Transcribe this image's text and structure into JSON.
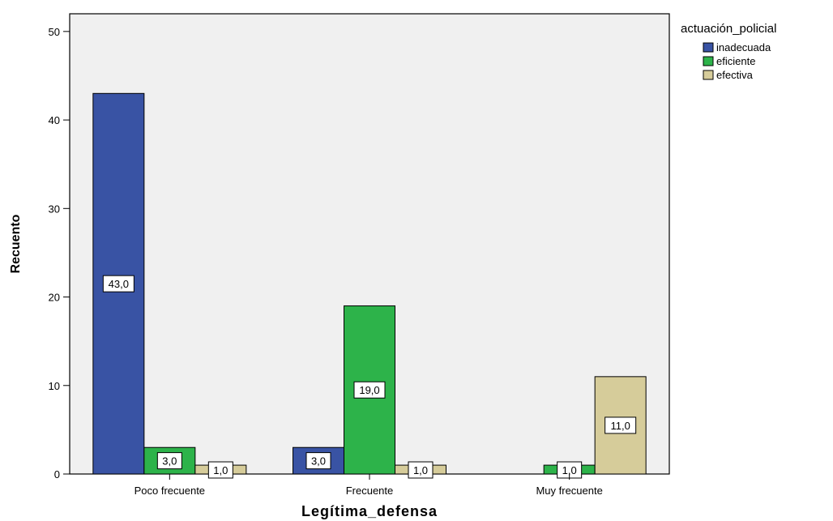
{
  "chart_data": {
    "type": "bar",
    "categories": [
      "Poco frecuente",
      "Frecuente",
      "Muy frecuente"
    ],
    "series": [
      {
        "name": "inadecuada",
        "color": "#3953a4",
        "values": [
          43,
          3,
          0
        ],
        "labels": [
          "43,0",
          "3,0",
          null
        ]
      },
      {
        "name": "eficiente",
        "color": "#2db34a",
        "values": [
          3,
          19,
          1
        ],
        "labels": [
          "3,0",
          "19,0",
          "1,0"
        ]
      },
      {
        "name": "efectiva",
        "color": "#d6cc9a",
        "values": [
          1,
          1,
          11
        ],
        "labels": [
          "1,0",
          "1,0",
          "11,0"
        ]
      }
    ],
    "xlabel": "Legítima_defensa",
    "ylabel": "Recuento",
    "ylim": [
      0,
      52
    ],
    "yticks": [
      0,
      10,
      20,
      30,
      40,
      50
    ],
    "legend_title": "actuación_policial",
    "legend_position": "top-right",
    "plot_background": "#f0f0f0",
    "grid": false
  }
}
